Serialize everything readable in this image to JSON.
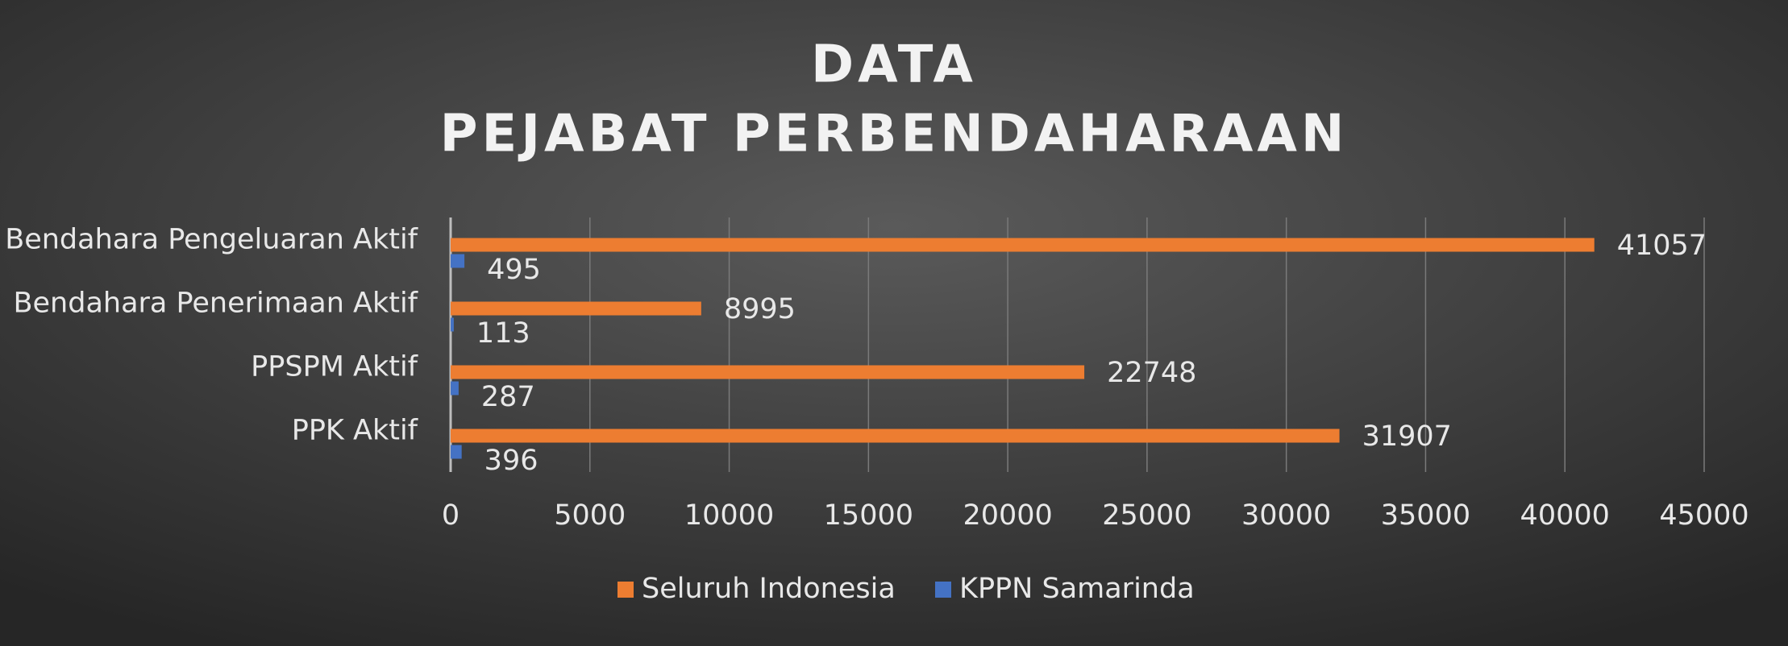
{
  "chart_data": {
    "type": "hbar",
    "title": [
      "DATA",
      "PEJABAT PERBENDAHARAAN"
    ],
    "categories": [
      "Bendahara Pengeluaran Aktif",
      "Bendahara Penerimaan Aktif",
      "PPSPM Aktif",
      "PPK Aktif"
    ],
    "series": [
      {
        "name": "Seluruh Indonesia",
        "color": "#ed7d31",
        "values": [
          41057,
          8995,
          22748,
          31907
        ]
      },
      {
        "name": "KPPN Samarinda",
        "color": "#4472c4",
        "values": [
          495,
          113,
          287,
          396
        ]
      }
    ],
    "xlim": [
      0,
      45000
    ],
    "xticks": [
      0,
      5000,
      10000,
      15000,
      20000,
      25000,
      30000,
      35000,
      40000,
      45000
    ],
    "grid": true,
    "legend": "bottom"
  }
}
